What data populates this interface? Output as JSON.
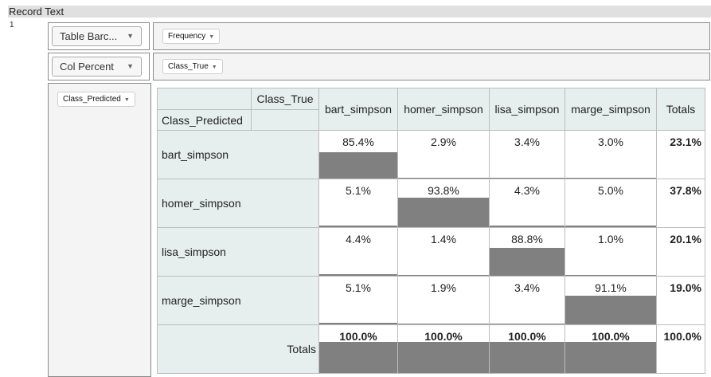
{
  "header": {
    "title": "Record Text"
  },
  "record_number": "1",
  "controls": {
    "renderer": "Table Barc...",
    "aggregator": "Col Percent"
  },
  "fields": {
    "value_field": "Frequency",
    "col_field": "Class_True",
    "row_field": "Class_Predicted"
  },
  "table": {
    "corner_col_label": "Class_True",
    "corner_row_label": "Class_Predicted",
    "columns": [
      "bart_simpson",
      "homer_simpson",
      "lisa_simpson",
      "marge_simpson"
    ],
    "totals_label": "Totals",
    "rows": [
      {
        "label": "bart_simpson",
        "cells": [
          "85.4%",
          "2.9%",
          "3.4%",
          "3.0%"
        ],
        "fills": [
          0.854,
          0.029,
          0.034,
          0.03
        ],
        "total": "23.1%"
      },
      {
        "label": "homer_simpson",
        "cells": [
          "5.1%",
          "93.8%",
          "4.3%",
          "5.0%"
        ],
        "fills": [
          0.051,
          0.938,
          0.043,
          0.05
        ],
        "total": "37.8%"
      },
      {
        "label": "lisa_simpson",
        "cells": [
          "4.4%",
          "1.4%",
          "88.8%",
          "1.0%"
        ],
        "fills": [
          0.044,
          0.014,
          0.888,
          0.01
        ],
        "total": "20.1%"
      },
      {
        "label": "marge_simpson",
        "cells": [
          "5.1%",
          "1.9%",
          "3.4%",
          "91.1%"
        ],
        "fills": [
          0.051,
          0.019,
          0.034,
          0.911
        ],
        "total": "19.0%"
      }
    ],
    "col_totals": [
      "100.0%",
      "100.0%",
      "100.0%",
      "100.0%"
    ],
    "col_total_fills": [
      1,
      1,
      1,
      1
    ],
    "grand_total": "100.0%"
  }
}
